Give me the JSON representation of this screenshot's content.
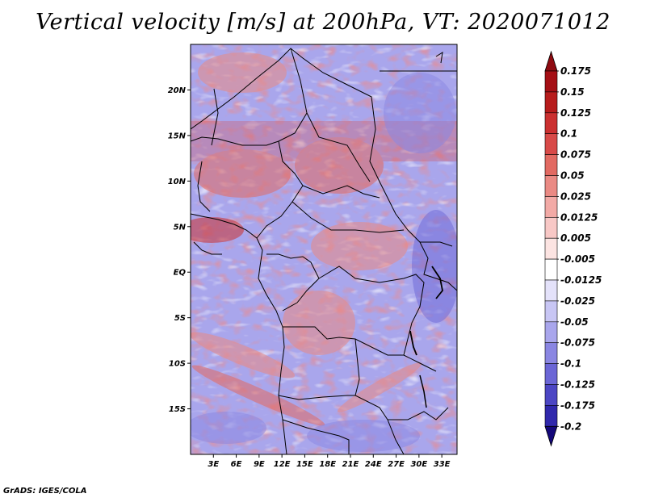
{
  "title": "Vertical velocity [m/s] at 200hPa, VT: 2020071012",
  "credit": "GrADS: IGES/COLA",
  "map": {
    "extent": {
      "lon_min": 0,
      "lon_max": 35,
      "lat_min": -20,
      "lat_max": 25
    },
    "lat_ticks": [
      {
        "value": 20,
        "label": "20N"
      },
      {
        "value": 15,
        "label": "15N"
      },
      {
        "value": 10,
        "label": "10N"
      },
      {
        "value": 5,
        "label": "5N"
      },
      {
        "value": 0,
        "label": "EQ"
      },
      {
        "value": -5,
        "label": "5S"
      },
      {
        "value": -10,
        "label": "10S"
      },
      {
        "value": -15,
        "label": "15S"
      }
    ],
    "lon_ticks": [
      {
        "value": 3,
        "label": "3E"
      },
      {
        "value": 6,
        "label": "6E"
      },
      {
        "value": 9,
        "label": "9E"
      },
      {
        "value": 12,
        "label": "12E"
      },
      {
        "value": 15,
        "label": "15E"
      },
      {
        "value": 18,
        "label": "18E"
      },
      {
        "value": 21,
        "label": "21E"
      },
      {
        "value": 24,
        "label": "24E"
      },
      {
        "value": 27,
        "label": "27E"
      },
      {
        "value": 30,
        "label": "30E"
      },
      {
        "value": 33,
        "label": "33E"
      }
    ],
    "field": "vertical velocity",
    "level": "200hPa",
    "valid_time": "2020071012"
  },
  "colorbar": {
    "levels": [
      {
        "label": "0.175",
        "color": "#a50f15"
      },
      {
        "label": "0.15",
        "color": "#b71c1c"
      },
      {
        "label": "0.125",
        "color": "#cb3030"
      },
      {
        "label": "0.1",
        "color": "#d84a48"
      },
      {
        "label": "0.075",
        "color": "#e26a62"
      },
      {
        "label": "0.05",
        "color": "#ea8a84"
      },
      {
        "label": "0.025",
        "color": "#f2aaa6"
      },
      {
        "label": "0.0125",
        "color": "#f8c8c6"
      },
      {
        "label": "0.005",
        "color": "#fce4e2"
      },
      {
        "label": "-0.005",
        "color": "#ffffff"
      },
      {
        "label": "-0.0125",
        "color": "#e4e2fa"
      },
      {
        "label": "-0.025",
        "color": "#c8c6f4"
      },
      {
        "label": "-0.05",
        "color": "#a9a6ec"
      },
      {
        "label": "-0.075",
        "color": "#8a86e2"
      },
      {
        "label": "-0.1",
        "color": "#6b66d6"
      },
      {
        "label": "-0.125",
        "color": "#4c46c4"
      },
      {
        "label": "-0.175",
        "color": "#3028ac"
      },
      {
        "label": "-0.2",
        "color": "#1c1090"
      }
    ],
    "top_color": "#8e0a10",
    "bottom_color": "#14087a"
  }
}
